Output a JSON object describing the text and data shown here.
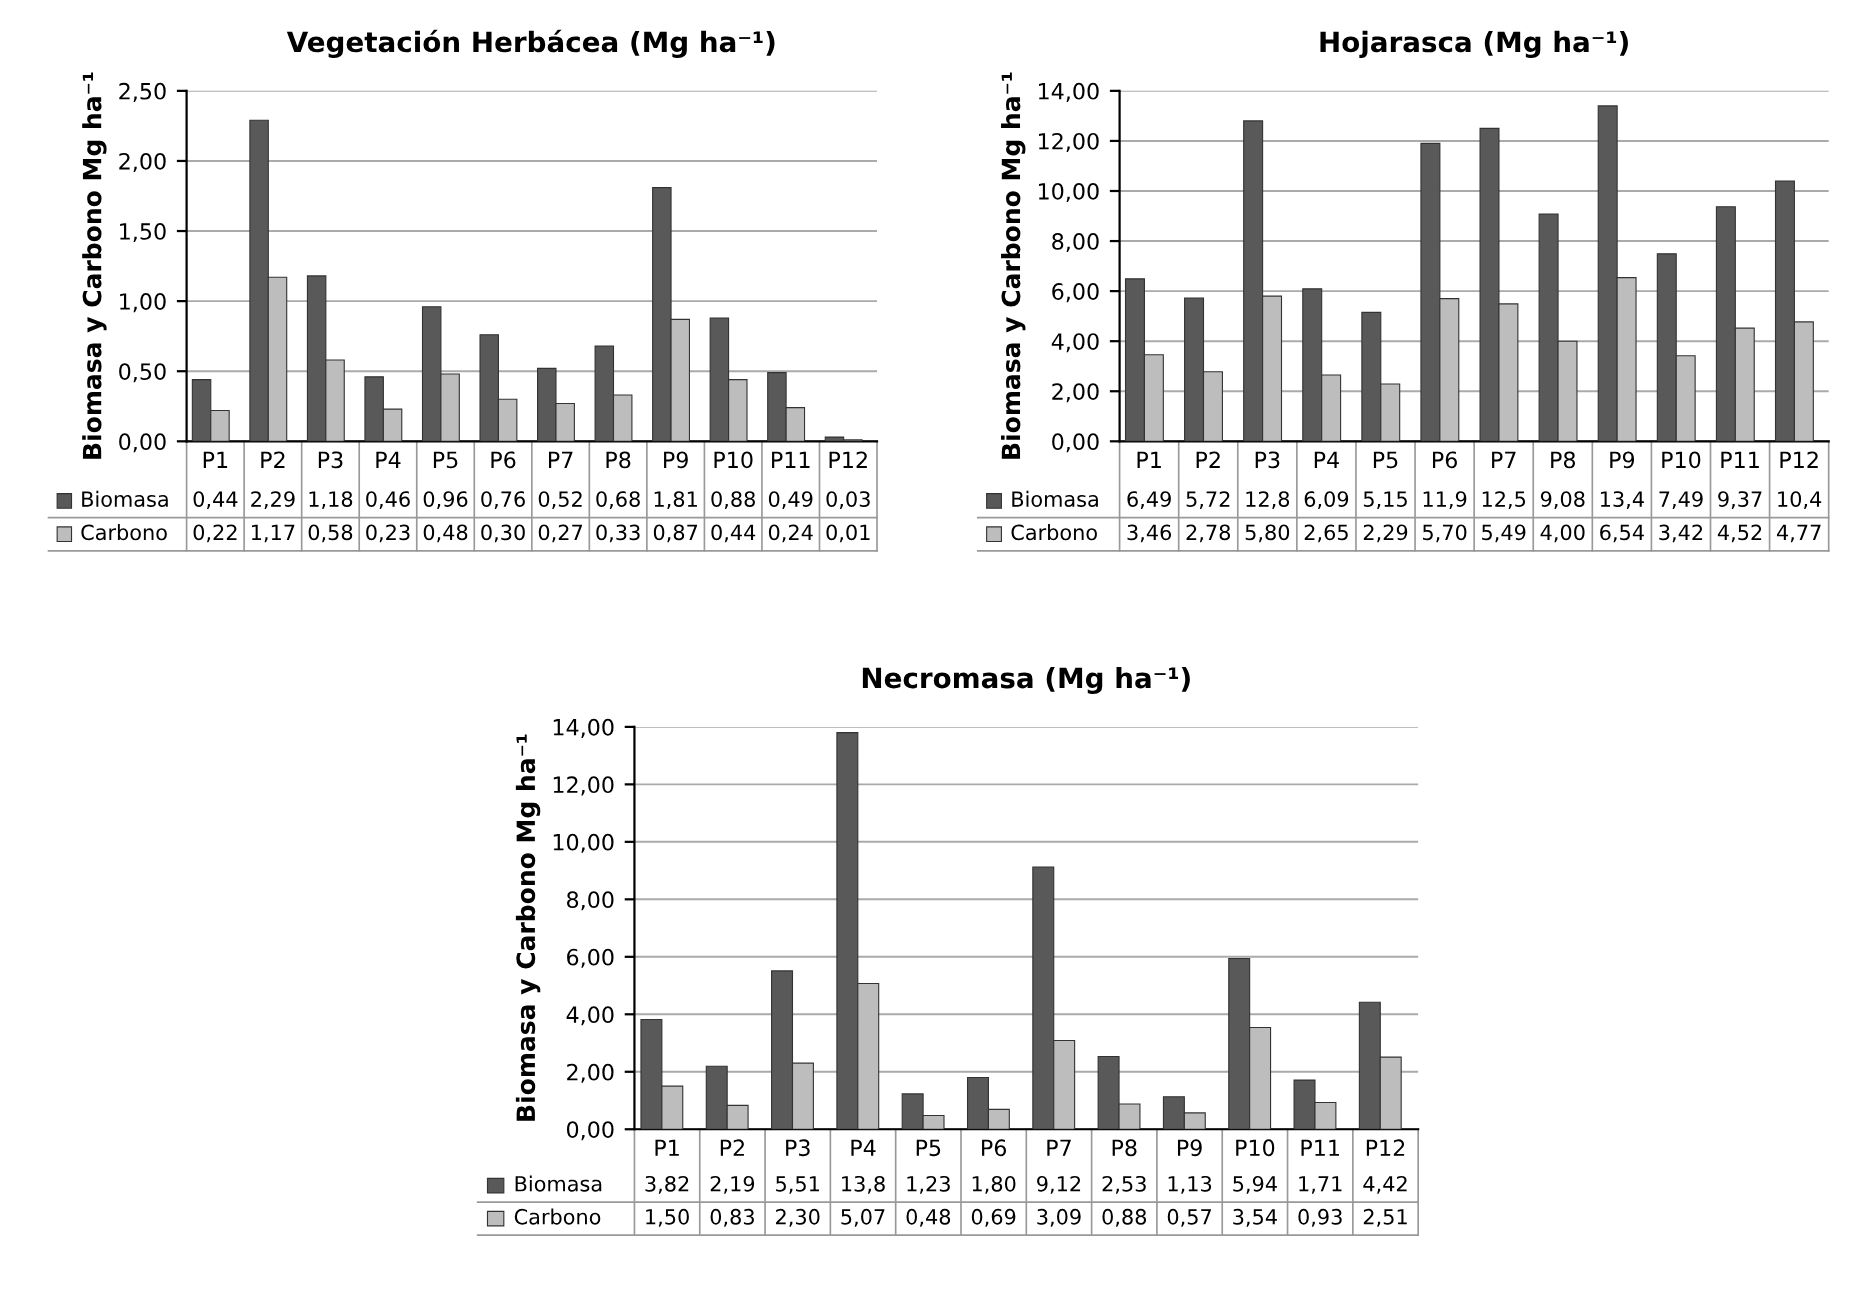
{
  "chart_data": [
    {
      "type": "bar",
      "title": "Vegetación Herbácea (Mg ha⁻¹)",
      "ylabel": "Biomasa y Carbono Mg ha⁻¹",
      "categories": [
        "P1",
        "P2",
        "P3",
        "P4",
        "P5",
        "P6",
        "P7",
        "P8",
        "P9",
        "P10",
        "P11",
        "P12"
      ],
      "series": [
        {
          "name": "Biomasa",
          "color": "#595959",
          "values": [
            0.44,
            2.29,
            1.18,
            0.46,
            0.96,
            0.76,
            0.52,
            0.68,
            1.81,
            0.88,
            0.49,
            0.03
          ],
          "value_labels": [
            "0,44",
            "2,29",
            "1,18",
            "0,46",
            "0,96",
            "0,76",
            "0,52",
            "0,68",
            "1,81",
            "0,88",
            "0,49",
            "0,03"
          ]
        },
        {
          "name": "Carbono",
          "color": "#bdbdbd",
          "values": [
            0.22,
            1.17,
            0.58,
            0.23,
            0.48,
            0.3,
            0.27,
            0.33,
            0.87,
            0.44,
            0.24,
            0.01
          ],
          "value_labels": [
            "0,22",
            "1,17",
            "0,58",
            "0,23",
            "0,48",
            "0,30",
            "0,27",
            "0,33",
            "0,87",
            "0,44",
            "0,24",
            "0,01"
          ]
        }
      ],
      "ylim": [
        0,
        2.5
      ],
      "yticks": [
        {
          "value": 0,
          "label": "0,00"
        },
        {
          "value": 0.5,
          "label": "0,50"
        },
        {
          "value": 1,
          "label": "1,00"
        },
        {
          "value": 1.5,
          "label": "1,50"
        },
        {
          "value": 2,
          "label": "2,00"
        },
        {
          "value": 2.5,
          "label": "2,50"
        }
      ],
      "grid": "y",
      "legend": "bottom"
    },
    {
      "type": "bar",
      "title": "Hojarasca (Mg ha⁻¹)",
      "ylabel": "Biomasa y Carbono Mg ha⁻¹",
      "categories": [
        "P1",
        "P2",
        "P3",
        "P4",
        "P5",
        "P6",
        "P7",
        "P8",
        "P9",
        "P10",
        "P11",
        "P12"
      ],
      "series": [
        {
          "name": "Biomasa",
          "color": "#595959",
          "values": [
            6.49,
            5.72,
            12.8,
            6.09,
            5.15,
            11.9,
            12.5,
            9.08,
            13.4,
            7.49,
            9.37,
            10.4
          ],
          "value_labels": [
            "6,49",
            "5,72",
            "12,8",
            "6,09",
            "5,15",
            "11,9",
            "12,5",
            "9,08",
            "13,4",
            "7,49",
            "9,37",
            "10,4"
          ]
        },
        {
          "name": "Carbono",
          "color": "#bdbdbd",
          "values": [
            3.46,
            2.78,
            5.8,
            2.65,
            2.29,
            5.7,
            5.49,
            4.0,
            6.54,
            3.42,
            4.52,
            4.77
          ],
          "value_labels": [
            "3,46",
            "2,78",
            "5,80",
            "2,65",
            "2,29",
            "5,70",
            "5,49",
            "4,00",
            "6,54",
            "3,42",
            "4,52",
            "4,77"
          ]
        }
      ],
      "ylim": [
        0,
        14
      ],
      "yticks": [
        {
          "value": 0,
          "label": "0,00"
        },
        {
          "value": 2,
          "label": "2,00"
        },
        {
          "value": 4,
          "label": "4,00"
        },
        {
          "value": 6,
          "label": "6,00"
        },
        {
          "value": 8,
          "label": "8,00"
        },
        {
          "value": 10,
          "label": "10,00"
        },
        {
          "value": 12,
          "label": "12,00"
        },
        {
          "value": 14,
          "label": "14,00"
        }
      ],
      "grid": "y",
      "legend": "bottom"
    },
    {
      "type": "bar",
      "title": "Necromasa (Mg ha⁻¹)",
      "ylabel": "Biomasa y Carbono Mg ha⁻¹",
      "categories": [
        "P1",
        "P2",
        "P3",
        "P4",
        "P5",
        "P6",
        "P7",
        "P8",
        "P9",
        "P10",
        "P11",
        "P12"
      ],
      "series": [
        {
          "name": "Biomasa",
          "color": "#595959",
          "values": [
            3.82,
            2.19,
            5.51,
            13.8,
            1.23,
            1.8,
            9.12,
            2.53,
            1.13,
            5.94,
            1.71,
            4.42
          ],
          "value_labels": [
            "3,82",
            "2,19",
            "5,51",
            "13,8",
            "1,23",
            "1,80",
            "9,12",
            "2,53",
            "1,13",
            "5,94",
            "1,71",
            "4,42"
          ]
        },
        {
          "name": "Carbono",
          "color": "#bdbdbd",
          "values": [
            1.5,
            0.83,
            2.3,
            5.07,
            0.48,
            0.69,
            3.09,
            0.88,
            0.57,
            3.54,
            0.93,
            2.51
          ],
          "value_labels": [
            "1,50",
            "0,83",
            "2,30",
            "5,07",
            "0,48",
            "0,69",
            "3,09",
            "0,88",
            "0,57",
            "3,54",
            "0,93",
            "2,51"
          ]
        }
      ],
      "ylim": [
        0,
        14
      ],
      "yticks": [
        {
          "value": 0,
          "label": "0,00"
        },
        {
          "value": 2,
          "label": "2,00"
        },
        {
          "value": 4,
          "label": "4,00"
        },
        {
          "value": 6,
          "label": "6,00"
        },
        {
          "value": 8,
          "label": "8,00"
        },
        {
          "value": 10,
          "label": "10,00"
        },
        {
          "value": 12,
          "label": "12,00"
        },
        {
          "value": 14,
          "label": "14,00"
        }
      ],
      "grid": "y",
      "legend": "bottom"
    }
  ]
}
